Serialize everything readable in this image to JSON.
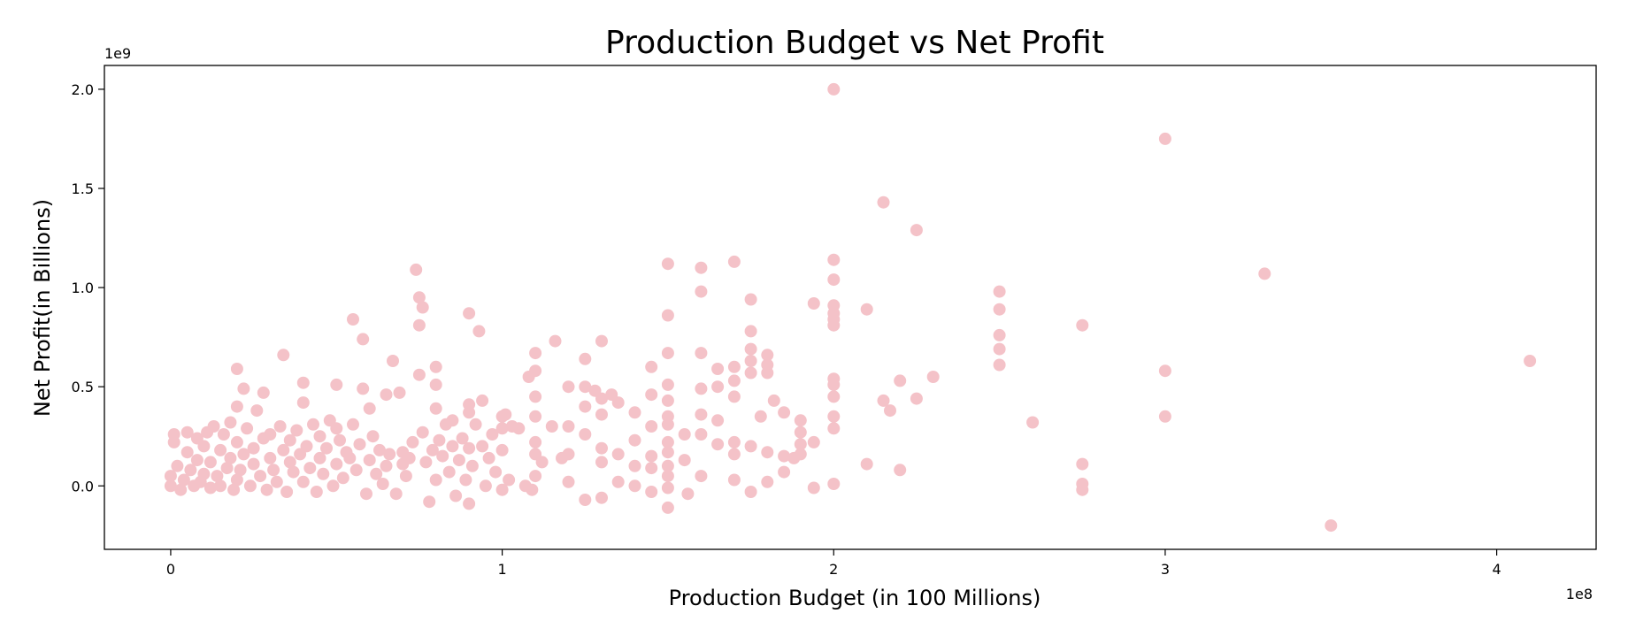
{
  "chart_data": {
    "type": "scatter",
    "title": "Production Budget vs Net Profit",
    "xlabel": "Production Budget (in 100 Millions)",
    "ylabel": "Net Profit(in Billions)",
    "x_offset_label": "1e8",
    "y_offset_label": "1e9",
    "xlim": [
      -0.2,
      4.3
    ],
    "ylim": [
      -0.32,
      2.12
    ],
    "xticks": [
      0,
      1,
      2,
      3,
      4
    ],
    "xtick_labels": [
      "0",
      "1",
      "2",
      "3",
      "4"
    ],
    "yticks": [
      0.0,
      0.5,
      1.0,
      1.5,
      2.0
    ],
    "ytick_labels": [
      "0.0",
      "0.5",
      "1.0",
      "1.5",
      "2.0"
    ],
    "grid": false,
    "marker_color": "#f4c2c8",
    "points": [
      [
        0.0,
        0.0
      ],
      [
        0.0,
        0.05
      ],
      [
        0.01,
        0.22
      ],
      [
        0.01,
        0.26
      ],
      [
        0.02,
        0.1
      ],
      [
        0.03,
        -0.02
      ],
      [
        0.04,
        0.03
      ],
      [
        0.05,
        0.17
      ],
      [
        0.05,
        0.27
      ],
      [
        0.06,
        0.08
      ],
      [
        0.07,
        0.0
      ],
      [
        0.08,
        0.24
      ],
      [
        0.08,
        0.13
      ],
      [
        0.09,
        0.02
      ],
      [
        0.1,
        0.06
      ],
      [
        0.1,
        0.2
      ],
      [
        0.11,
        0.27
      ],
      [
        0.12,
        -0.01
      ],
      [
        0.12,
        0.12
      ],
      [
        0.13,
        0.3
      ],
      [
        0.14,
        0.05
      ],
      [
        0.15,
        0.18
      ],
      [
        0.15,
        0.0
      ],
      [
        0.16,
        0.26
      ],
      [
        0.17,
        0.09
      ],
      [
        0.18,
        0.32
      ],
      [
        0.18,
        0.14
      ],
      [
        0.19,
        -0.02
      ],
      [
        0.2,
        0.03
      ],
      [
        0.2,
        0.22
      ],
      [
        0.2,
        0.4
      ],
      [
        0.2,
        0.59
      ],
      [
        0.21,
        0.08
      ],
      [
        0.22,
        0.49
      ],
      [
        0.22,
        0.16
      ],
      [
        0.23,
        0.29
      ],
      [
        0.24,
        0.0
      ],
      [
        0.25,
        0.11
      ],
      [
        0.25,
        0.19
      ],
      [
        0.26,
        0.38
      ],
      [
        0.27,
        0.05
      ],
      [
        0.28,
        0.24
      ],
      [
        0.28,
        0.47
      ],
      [
        0.29,
        -0.02
      ],
      [
        0.3,
        0.14
      ],
      [
        0.3,
        0.26
      ],
      [
        0.31,
        0.08
      ],
      [
        0.32,
        0.02
      ],
      [
        0.33,
        0.3
      ],
      [
        0.34,
        0.18
      ],
      [
        0.34,
        0.66
      ],
      [
        0.35,
        -0.03
      ],
      [
        0.36,
        0.12
      ],
      [
        0.36,
        0.23
      ],
      [
        0.37,
        0.07
      ],
      [
        0.38,
        0.28
      ],
      [
        0.39,
        0.16
      ],
      [
        0.4,
        0.02
      ],
      [
        0.4,
        0.42
      ],
      [
        0.4,
        0.52
      ],
      [
        0.41,
        0.2
      ],
      [
        0.42,
        0.09
      ],
      [
        0.43,
        0.31
      ],
      [
        0.44,
        -0.03
      ],
      [
        0.45,
        0.14
      ],
      [
        0.45,
        0.25
      ],
      [
        0.46,
        0.06
      ],
      [
        0.47,
        0.19
      ],
      [
        0.48,
        0.33
      ],
      [
        0.49,
        0.0
      ],
      [
        0.5,
        0.11
      ],
      [
        0.5,
        0.29
      ],
      [
        0.5,
        0.51
      ],
      [
        0.51,
        0.23
      ],
      [
        0.52,
        0.04
      ],
      [
        0.53,
        0.17
      ],
      [
        0.54,
        0.14
      ],
      [
        0.55,
        0.84
      ],
      [
        0.55,
        0.31
      ],
      [
        0.56,
        0.08
      ],
      [
        0.57,
        0.21
      ],
      [
        0.58,
        0.49
      ],
      [
        0.58,
        0.74
      ],
      [
        0.59,
        -0.04
      ],
      [
        0.6,
        0.13
      ],
      [
        0.6,
        0.39
      ],
      [
        0.61,
        0.25
      ],
      [
        0.62,
        0.06
      ],
      [
        0.63,
        0.18
      ],
      [
        0.64,
        0.01
      ],
      [
        0.65,
        0.46
      ],
      [
        0.65,
        0.1
      ],
      [
        0.66,
        0.16
      ],
      [
        0.67,
        0.63
      ],
      [
        0.68,
        -0.04
      ],
      [
        0.69,
        0.47
      ],
      [
        0.7,
        0.11
      ],
      [
        0.7,
        0.17
      ],
      [
        0.71,
        0.05
      ],
      [
        0.72,
        0.14
      ],
      [
        0.73,
        0.22
      ],
      [
        0.74,
        1.09
      ],
      [
        0.75,
        0.95
      ],
      [
        0.75,
        0.81
      ],
      [
        0.75,
        0.56
      ],
      [
        0.76,
        0.9
      ],
      [
        0.76,
        0.27
      ],
      [
        0.77,
        0.12
      ],
      [
        0.78,
        -0.08
      ],
      [
        0.79,
        0.18
      ],
      [
        0.8,
        0.03
      ],
      [
        0.8,
        0.39
      ],
      [
        0.8,
        0.51
      ],
      [
        0.8,
        0.6
      ],
      [
        0.81,
        0.23
      ],
      [
        0.82,
        0.15
      ],
      [
        0.83,
        0.31
      ],
      [
        0.84,
        0.07
      ],
      [
        0.85,
        0.33
      ],
      [
        0.85,
        0.2
      ],
      [
        0.86,
        -0.05
      ],
      [
        0.87,
        0.13
      ],
      [
        0.88,
        0.24
      ],
      [
        0.89,
        0.03
      ],
      [
        0.9,
        0.87
      ],
      [
        0.9,
        0.41
      ],
      [
        0.9,
        0.37
      ],
      [
        0.9,
        0.19
      ],
      [
        0.9,
        -0.09
      ],
      [
        0.91,
        0.1
      ],
      [
        0.92,
        0.31
      ],
      [
        0.93,
        0.78
      ],
      [
        0.94,
        0.43
      ],
      [
        0.94,
        0.2
      ],
      [
        0.95,
        0.0
      ],
      [
        0.96,
        0.14
      ],
      [
        0.97,
        0.26
      ],
      [
        0.98,
        0.07
      ],
      [
        1.0,
        0.35
      ],
      [
        1.0,
        0.29
      ],
      [
        1.0,
        0.18
      ],
      [
        1.0,
        -0.02
      ],
      [
        1.01,
        0.36
      ],
      [
        1.02,
        0.03
      ],
      [
        1.03,
        0.3
      ],
      [
        1.05,
        0.29
      ],
      [
        1.07,
        0.0
      ],
      [
        1.08,
        0.55
      ],
      [
        1.09,
        -0.02
      ],
      [
        1.1,
        0.67
      ],
      [
        1.1,
        0.58
      ],
      [
        1.1,
        0.45
      ],
      [
        1.1,
        0.35
      ],
      [
        1.1,
        0.22
      ],
      [
        1.1,
        0.16
      ],
      [
        1.1,
        0.05
      ],
      [
        1.12,
        0.12
      ],
      [
        1.15,
        0.3
      ],
      [
        1.16,
        0.73
      ],
      [
        1.18,
        0.14
      ],
      [
        1.2,
        0.5
      ],
      [
        1.2,
        0.3
      ],
      [
        1.2,
        0.16
      ],
      [
        1.2,
        0.02
      ],
      [
        1.25,
        0.64
      ],
      [
        1.25,
        0.5
      ],
      [
        1.25,
        0.4
      ],
      [
        1.25,
        0.26
      ],
      [
        1.25,
        -0.07
      ],
      [
        1.28,
        0.48
      ],
      [
        1.3,
        0.73
      ],
      [
        1.3,
        0.44
      ],
      [
        1.3,
        0.36
      ],
      [
        1.3,
        0.19
      ],
      [
        1.3,
        0.12
      ],
      [
        1.3,
        -0.06
      ],
      [
        1.33,
        0.46
      ],
      [
        1.35,
        0.42
      ],
      [
        1.35,
        0.16
      ],
      [
        1.35,
        0.02
      ],
      [
        1.4,
        0.37
      ],
      [
        1.4,
        0.23
      ],
      [
        1.4,
        0.1
      ],
      [
        1.4,
        0.0
      ],
      [
        1.45,
        0.6
      ],
      [
        1.45,
        0.46
      ],
      [
        1.45,
        0.3
      ],
      [
        1.45,
        0.15
      ],
      [
        1.45,
        0.09
      ],
      [
        1.45,
        -0.03
      ],
      [
        1.5,
        1.12
      ],
      [
        1.5,
        0.86
      ],
      [
        1.5,
        0.67
      ],
      [
        1.5,
        0.51
      ],
      [
        1.5,
        0.43
      ],
      [
        1.5,
        0.35
      ],
      [
        1.5,
        0.31
      ],
      [
        1.5,
        0.22
      ],
      [
        1.5,
        0.17
      ],
      [
        1.5,
        0.1
      ],
      [
        1.5,
        0.05
      ],
      [
        1.5,
        -0.01
      ],
      [
        1.5,
        -0.11
      ],
      [
        1.55,
        0.26
      ],
      [
        1.55,
        0.13
      ],
      [
        1.56,
        -0.04
      ],
      [
        1.6,
        1.1
      ],
      [
        1.6,
        0.98
      ],
      [
        1.6,
        0.67
      ],
      [
        1.6,
        0.49
      ],
      [
        1.6,
        0.36
      ],
      [
        1.6,
        0.26
      ],
      [
        1.6,
        0.05
      ],
      [
        1.65,
        0.59
      ],
      [
        1.65,
        0.5
      ],
      [
        1.65,
        0.33
      ],
      [
        1.65,
        0.21
      ],
      [
        1.7,
        1.13
      ],
      [
        1.7,
        0.6
      ],
      [
        1.7,
        0.53
      ],
      [
        1.7,
        0.45
      ],
      [
        1.7,
        0.22
      ],
      [
        1.7,
        0.16
      ],
      [
        1.7,
        0.03
      ],
      [
        1.75,
        0.94
      ],
      [
        1.75,
        0.78
      ],
      [
        1.75,
        0.69
      ],
      [
        1.75,
        0.63
      ],
      [
        1.75,
        0.57
      ],
      [
        1.75,
        0.2
      ],
      [
        1.75,
        -0.03
      ],
      [
        1.78,
        0.35
      ],
      [
        1.8,
        0.66
      ],
      [
        1.8,
        0.61
      ],
      [
        1.8,
        0.57
      ],
      [
        1.8,
        0.17
      ],
      [
        1.8,
        0.02
      ],
      [
        1.82,
        0.43
      ],
      [
        1.85,
        0.37
      ],
      [
        1.85,
        0.15
      ],
      [
        1.85,
        0.07
      ],
      [
        1.88,
        0.14
      ],
      [
        1.9,
        0.33
      ],
      [
        1.9,
        0.27
      ],
      [
        1.9,
        0.21
      ],
      [
        1.9,
        0.16
      ],
      [
        1.94,
        0.92
      ],
      [
        1.94,
        0.22
      ],
      [
        1.94,
        -0.01
      ],
      [
        2.0,
        2.0
      ],
      [
        2.0,
        1.14
      ],
      [
        2.0,
        1.04
      ],
      [
        2.0,
        0.91
      ],
      [
        2.0,
        0.87
      ],
      [
        2.0,
        0.84
      ],
      [
        2.0,
        0.81
      ],
      [
        2.0,
        0.54
      ],
      [
        2.0,
        0.51
      ],
      [
        2.0,
        0.45
      ],
      [
        2.0,
        0.35
      ],
      [
        2.0,
        0.29
      ],
      [
        2.0,
        0.01
      ],
      [
        2.1,
        0.89
      ],
      [
        2.1,
        0.11
      ],
      [
        2.15,
        1.43
      ],
      [
        2.15,
        0.43
      ],
      [
        2.17,
        0.38
      ],
      [
        2.2,
        0.53
      ],
      [
        2.2,
        0.08
      ],
      [
        2.25,
        1.29
      ],
      [
        2.25,
        0.44
      ],
      [
        2.3,
        0.55
      ],
      [
        2.5,
        0.98
      ],
      [
        2.5,
        0.89
      ],
      [
        2.5,
        0.76
      ],
      [
        2.5,
        0.69
      ],
      [
        2.5,
        0.61
      ],
      [
        2.6,
        0.32
      ],
      [
        2.75,
        0.81
      ],
      [
        2.75,
        0.11
      ],
      [
        2.75,
        0.01
      ],
      [
        2.75,
        -0.02
      ],
      [
        3.0,
        1.75
      ],
      [
        3.0,
        0.58
      ],
      [
        3.0,
        0.35
      ],
      [
        3.3,
        1.07
      ],
      [
        3.5,
        -0.2
      ],
      [
        4.1,
        0.63
      ]
    ]
  }
}
